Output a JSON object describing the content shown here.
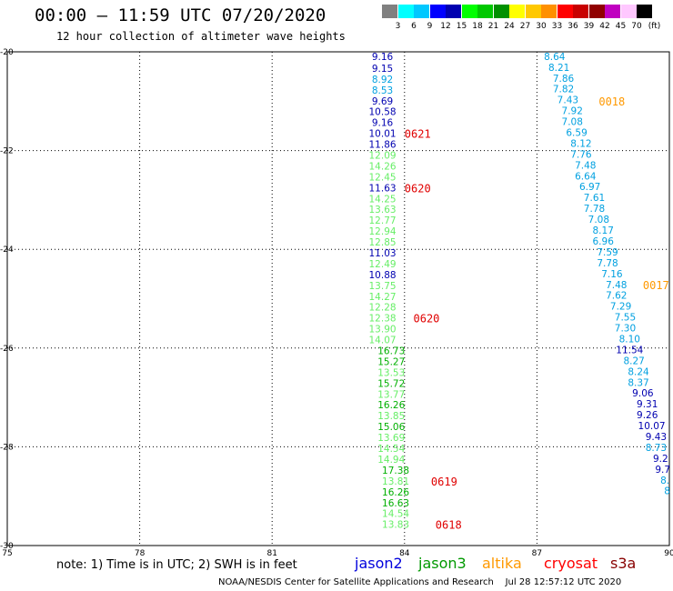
{
  "header": {
    "title": "00:00 – 11:59 UTC 07/20/2020",
    "subtitle": "12 hour collection of altimeter wave heights"
  },
  "colorbar": {
    "colors": [
      "#808080",
      "#00ffff",
      "#00c8ff",
      "#0000ff",
      "#0000b0",
      "#00ff00",
      "#00c800",
      "#009000",
      "#ffff00",
      "#ffc800",
      "#ff9000",
      "#ff0000",
      "#c80000",
      "#900000",
      "#c000c0",
      "#ffc8ff",
      "#000000"
    ],
    "labels": [
      "3",
      "6",
      "9",
      "12",
      "15",
      "18",
      "21",
      "24",
      "27",
      "30",
      "33",
      "36",
      "39",
      "42",
      "45",
      "70",
      "(ft)"
    ]
  },
  "map": {
    "lon_ticks": [
      "75",
      "78",
      "81",
      "84",
      "87",
      "90"
    ],
    "lat_ticks": [
      "-20",
      "-22",
      "-24",
      "-26",
      "-28",
      "-30"
    ],
    "lon_range": [
      75,
      90
    ],
    "lat_range": [
      -30,
      -20
    ],
    "grid": true
  },
  "tracks": [
    {
      "name": "left-track",
      "points": [
        {
          "lon": 83.5,
          "lat": -20.09,
          "v": "9.16",
          "c": "#0000b0"
        },
        {
          "lon": 83.5,
          "lat": -20.33,
          "v": "9.15",
          "c": "#0000b0"
        },
        {
          "lon": 83.5,
          "lat": -20.55,
          "v": "8.92",
          "c": "#00a0e0"
        },
        {
          "lon": 83.5,
          "lat": -20.77,
          "v": "8.53",
          "c": "#00a0e0"
        },
        {
          "lon": 83.5,
          "lat": -20.99,
          "v": "9.69",
          "c": "#0000b0"
        },
        {
          "lon": 83.5,
          "lat": -21.21,
          "v": "10.58",
          "c": "#0000b0"
        },
        {
          "lon": 83.5,
          "lat": -21.43,
          "v": "9.16",
          "c": "#0000b0"
        },
        {
          "lon": 83.5,
          "lat": -21.65,
          "v": "10.01",
          "c": "#0000b0"
        },
        {
          "lon": 83.5,
          "lat": -21.87,
          "v": "11.86",
          "c": "#0000b0"
        },
        {
          "lon": 83.5,
          "lat": -22.09,
          "v": "12.09",
          "c": "#66ee66"
        },
        {
          "lon": 83.5,
          "lat": -22.31,
          "v": "14.26",
          "c": "#66ee66"
        },
        {
          "lon": 83.5,
          "lat": -22.53,
          "v": "12.45",
          "c": "#66ee66"
        },
        {
          "lon": 83.5,
          "lat": -22.75,
          "v": "11.63",
          "c": "#0000b0"
        },
        {
          "lon": 83.5,
          "lat": -22.97,
          "v": "14.25",
          "c": "#66ee66"
        },
        {
          "lon": 83.5,
          "lat": -23.19,
          "v": "13.63",
          "c": "#66ee66"
        },
        {
          "lon": 83.5,
          "lat": -23.41,
          "v": "12.77",
          "c": "#66ee66"
        },
        {
          "lon": 83.5,
          "lat": -23.63,
          "v": "12.94",
          "c": "#66ee66"
        },
        {
          "lon": 83.5,
          "lat": -23.85,
          "v": "12.85",
          "c": "#66ee66"
        },
        {
          "lon": 83.5,
          "lat": -24.07,
          "v": "11.03",
          "c": "#0000b0"
        },
        {
          "lon": 83.5,
          "lat": -24.29,
          "v": "12.49",
          "c": "#66ee66"
        },
        {
          "lon": 83.5,
          "lat": -24.51,
          "v": "10.88",
          "c": "#0000b0"
        },
        {
          "lon": 83.5,
          "lat": -24.73,
          "v": "13.75",
          "c": "#66ee66"
        },
        {
          "lon": 83.5,
          "lat": -24.95,
          "v": "14.27",
          "c": "#66ee66"
        },
        {
          "lon": 83.5,
          "lat": -25.17,
          "v": "12.28",
          "c": "#66ee66"
        },
        {
          "lon": 83.5,
          "lat": -25.39,
          "v": "12.38",
          "c": "#66ee66"
        },
        {
          "lon": 83.5,
          "lat": -25.61,
          "v": "13.90",
          "c": "#66ee66"
        },
        {
          "lon": 83.5,
          "lat": -25.83,
          "v": "14.07",
          "c": "#66ee66"
        },
        {
          "lon": 83.7,
          "lat": -26.05,
          "v": "16.73",
          "c": "#00b000"
        },
        {
          "lon": 83.7,
          "lat": -26.27,
          "v": "15.27",
          "c": "#00b000"
        },
        {
          "lon": 83.7,
          "lat": -26.49,
          "v": "13.53",
          "c": "#66ee66"
        },
        {
          "lon": 83.7,
          "lat": -26.71,
          "v": "15.72",
          "c": "#00b000"
        },
        {
          "lon": 83.7,
          "lat": -26.93,
          "v": "13.77",
          "c": "#66ee66"
        },
        {
          "lon": 83.7,
          "lat": -27.15,
          "v": "16.26",
          "c": "#00b000"
        },
        {
          "lon": 83.7,
          "lat": -27.37,
          "v": "13.85",
          "c": "#66ee66"
        },
        {
          "lon": 83.7,
          "lat": -27.59,
          "v": "15.06",
          "c": "#00b000"
        },
        {
          "lon": 83.7,
          "lat": -27.81,
          "v": "13.69",
          "c": "#66ee66"
        },
        {
          "lon": 83.7,
          "lat": -28.03,
          "v": "14.54",
          "c": "#66ee66"
        },
        {
          "lon": 83.7,
          "lat": -28.25,
          "v": "14.94",
          "c": "#66ee66"
        },
        {
          "lon": 83.8,
          "lat": -28.47,
          "v": "17.38",
          "c": "#00b000"
        },
        {
          "lon": 83.8,
          "lat": -28.69,
          "v": "13.81",
          "c": "#66ee66"
        },
        {
          "lon": 83.8,
          "lat": -28.91,
          "v": "16.26",
          "c": "#00b000"
        },
        {
          "lon": 83.8,
          "lat": -29.13,
          "v": "16.63",
          "c": "#00b000"
        },
        {
          "lon": 83.8,
          "lat": -29.35,
          "v": "14.54",
          "c": "#66ee66"
        },
        {
          "lon": 83.8,
          "lat": -29.57,
          "v": "13.83",
          "c": "#66ee66"
        }
      ]
    },
    {
      "name": "right-track",
      "points": [
        {
          "lon": 87.4,
          "lat": -20.09,
          "v": "8.64",
          "c": "#00a0e0"
        },
        {
          "lon": 87.5,
          "lat": -20.31,
          "v": "8.21",
          "c": "#00a0e0"
        },
        {
          "lon": 87.6,
          "lat": -20.53,
          "v": "7.86",
          "c": "#00a0e0"
        },
        {
          "lon": 87.6,
          "lat": -20.75,
          "v": "7.82",
          "c": "#00a0e0"
        },
        {
          "lon": 87.7,
          "lat": -20.97,
          "v": "7.43",
          "c": "#00a0e0"
        },
        {
          "lon": 87.8,
          "lat": -21.19,
          "v": "7.92",
          "c": "#00a0e0"
        },
        {
          "lon": 87.8,
          "lat": -21.41,
          "v": "7.08",
          "c": "#00a0e0"
        },
        {
          "lon": 87.9,
          "lat": -21.63,
          "v": "6.59",
          "c": "#00a0e0"
        },
        {
          "lon": 88.0,
          "lat": -21.85,
          "v": "8.12",
          "c": "#00a0e0"
        },
        {
          "lon": 88.0,
          "lat": -22.07,
          "v": "7.76",
          "c": "#00a0e0"
        },
        {
          "lon": 88.1,
          "lat": -22.29,
          "v": "7.48",
          "c": "#00a0e0"
        },
        {
          "lon": 88.1,
          "lat": -22.51,
          "v": "6.64",
          "c": "#00a0e0"
        },
        {
          "lon": 88.2,
          "lat": -22.73,
          "v": "6.97",
          "c": "#00a0e0"
        },
        {
          "lon": 88.3,
          "lat": -22.95,
          "v": "7.61",
          "c": "#00a0e0"
        },
        {
          "lon": 88.3,
          "lat": -23.17,
          "v": "7.78",
          "c": "#00a0e0"
        },
        {
          "lon": 88.4,
          "lat": -23.39,
          "v": "7.08",
          "c": "#00a0e0"
        },
        {
          "lon": 88.5,
          "lat": -23.61,
          "v": "8.17",
          "c": "#00a0e0"
        },
        {
          "lon": 88.5,
          "lat": -23.83,
          "v": "6.96",
          "c": "#00a0e0"
        },
        {
          "lon": 88.6,
          "lat": -24.05,
          "v": "7.59",
          "c": "#00a0e0"
        },
        {
          "lon": 88.6,
          "lat": -24.27,
          "v": "7.78",
          "c": "#00a0e0"
        },
        {
          "lon": 88.7,
          "lat": -24.49,
          "v": "7.16",
          "c": "#00a0e0"
        },
        {
          "lon": 88.8,
          "lat": -24.71,
          "v": "7.48",
          "c": "#00a0e0"
        },
        {
          "lon": 88.8,
          "lat": -24.93,
          "v": "7.62",
          "c": "#00a0e0"
        },
        {
          "lon": 88.9,
          "lat": -25.15,
          "v": "7.29",
          "c": "#00a0e0"
        },
        {
          "lon": 89.0,
          "lat": -25.37,
          "v": "7.55",
          "c": "#00a0e0"
        },
        {
          "lon": 89.0,
          "lat": -25.59,
          "v": "7.30",
          "c": "#00a0e0"
        },
        {
          "lon": 89.1,
          "lat": -25.81,
          "v": "8.10",
          "c": "#00a0e0"
        },
        {
          "lon": 89.1,
          "lat": -26.03,
          "v": "11.54",
          "c": "#0000b0"
        },
        {
          "lon": 89.2,
          "lat": -26.25,
          "v": "8.27",
          "c": "#00a0e0"
        },
        {
          "lon": 89.3,
          "lat": -26.47,
          "v": "8.24",
          "c": "#00a0e0"
        },
        {
          "lon": 89.3,
          "lat": -26.69,
          "v": "8.37",
          "c": "#00a0e0"
        },
        {
          "lon": 89.4,
          "lat": -26.91,
          "v": "9.06",
          "c": "#0000b0"
        },
        {
          "lon": 89.5,
          "lat": -27.13,
          "v": "9.31",
          "c": "#0000b0"
        },
        {
          "lon": 89.5,
          "lat": -27.35,
          "v": "9.26",
          "c": "#0000b0"
        },
        {
          "lon": 89.6,
          "lat": -27.57,
          "v": "10.07",
          "c": "#0000b0"
        },
        {
          "lon": 89.7,
          "lat": -27.79,
          "v": "9.43",
          "c": "#0000b0"
        },
        {
          "lon": 89.7,
          "lat": -28.01,
          "v": "8.73",
          "c": "#00a0e0"
        },
        {
          "lon": 89.8,
          "lat": -28.23,
          "v": "9.2",
          "c": "#0000b0"
        },
        {
          "lon": 89.85,
          "lat": -28.45,
          "v": "9.7",
          "c": "#0000b0"
        },
        {
          "lon": 89.9,
          "lat": -28.67,
          "v": "8.",
          "c": "#00a0e0"
        },
        {
          "lon": 89.95,
          "lat": -28.89,
          "v": "8",
          "c": "#00a0e0"
        }
      ]
    }
  ],
  "time_labels": [
    {
      "lon": 84.0,
      "lat": -21.65,
      "t": "0621",
      "c": "#e00000"
    },
    {
      "lon": 84.0,
      "lat": -22.75,
      "t": "0620",
      "c": "#e00000"
    },
    {
      "lon": 84.2,
      "lat": -25.39,
      "t": "0620",
      "c": "#e00000"
    },
    {
      "lon": 84.6,
      "lat": -28.69,
      "t": "0619",
      "c": "#e00000"
    },
    {
      "lon": 84.7,
      "lat": -29.57,
      "t": "0618",
      "c": "#e00000"
    },
    {
      "lon": 88.4,
      "lat": -20.99,
      "t": "0018",
      "c": "#ff9900"
    },
    {
      "lon": 89.4,
      "lat": -24.71,
      "t": "0017",
      "c": "#ff9900"
    }
  ],
  "legend": {
    "note": "note: 1) Time is in UTC; 2) SWH is in feet",
    "satellites": [
      {
        "name": "jason2",
        "color": "#0000dd"
      },
      {
        "name": "jason3",
        "color": "#009900"
      },
      {
        "name": "altika",
        "color": "#ff9900"
      },
      {
        "name": "cryosat",
        "color": "#ff0000"
      },
      {
        "name": "s3a",
        "color": "#880000"
      }
    ]
  },
  "footer": {
    "agency": "NOAA/NESDIS Center for Satellite Applications and Research",
    "timestamp": "Jul 28 12:57:12 UTC 2020"
  }
}
